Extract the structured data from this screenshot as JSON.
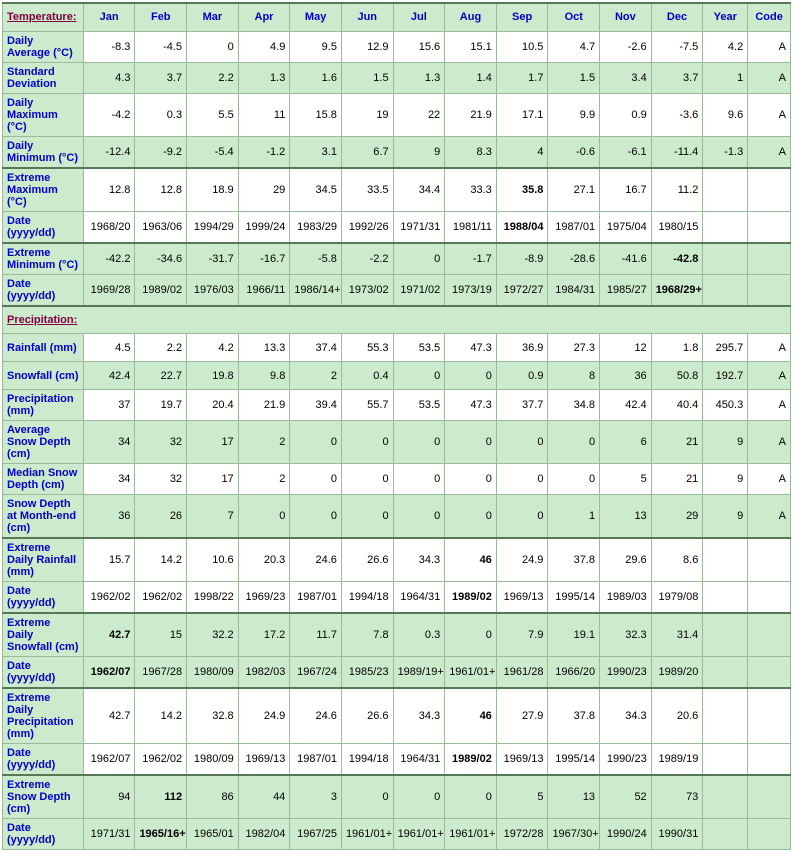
{
  "headers": [
    "Jan",
    "Feb",
    "Mar",
    "Apr",
    "May",
    "Jun",
    "Jul",
    "Aug",
    "Sep",
    "Oct",
    "Nov",
    "Dec",
    "Year",
    "Code"
  ],
  "sections": [
    {
      "title": "Temperature:",
      "rows": [
        {
          "label": "Daily Average (°C)",
          "zebra": "even",
          "vals": [
            "-8.3",
            "-4.5",
            "0",
            "4.9",
            "9.5",
            "12.9",
            "15.6",
            "15.1",
            "10.5",
            "4.7",
            "-2.6",
            "-7.5",
            "4.2",
            "A"
          ]
        },
        {
          "label": "Standard Deviation",
          "zebra": "odd",
          "vals": [
            "4.3",
            "3.7",
            "2.2",
            "1.3",
            "1.6",
            "1.5",
            "1.3",
            "1.4",
            "1.7",
            "1.5",
            "3.4",
            "3.7",
            "1",
            "A"
          ]
        },
        {
          "label": "Daily Maximum (°C)",
          "zebra": "even",
          "vals": [
            "-4.2",
            "0.3",
            "5.5",
            "11",
            "15.8",
            "19",
            "22",
            "21.9",
            "17.1",
            "9.9",
            "0.9",
            "-3.6",
            "9.6",
            "A"
          ]
        },
        {
          "label": "Daily Minimum (°C)",
          "zebra": "odd",
          "vals": [
            "-12.4",
            "-9.2",
            "-5.4",
            "-1.2",
            "3.1",
            "6.7",
            "9",
            "8.3",
            "4",
            "-0.6",
            "-6.1",
            "-11.4",
            "-1.3",
            "A"
          ]
        },
        {
          "label": "Extreme Maximum (°C)",
          "zebra": "even",
          "thick": true,
          "vals": [
            "12.8",
            "12.8",
            "18.9",
            "29",
            "34.5",
            "33.5",
            "34.4",
            "33.3",
            "35.8",
            "27.1",
            "16.7",
            "11.2",
            "",
            ""
          ],
          "bold": [
            8
          ]
        },
        {
          "label": "Date (yyyy/dd)",
          "zebra": "even",
          "vals": [
            "1968/20",
            "1963/06",
            "1994/29",
            "1999/24",
            "1983/29",
            "1992/26",
            "1971/31",
            "1981/11",
            "1988/04",
            "1987/01",
            "1975/04",
            "1980/15",
            "",
            ""
          ],
          "bold": [
            8
          ]
        },
        {
          "label": "Extreme Minimum (°C)",
          "zebra": "odd",
          "thick": true,
          "vals": [
            "-42.2",
            "-34.6",
            "-31.7",
            "-16.7",
            "-5.8",
            "-2.2",
            "0",
            "-1.7",
            "-8.9",
            "-28.6",
            "-41.6",
            "-42.8",
            "",
            ""
          ],
          "bold": [
            11
          ]
        },
        {
          "label": "Date (yyyy/dd)",
          "zebra": "odd",
          "vals": [
            "1969/28",
            "1989/02",
            "1976/03",
            "1966/11",
            "1986/14+",
            "1973/02",
            "1971/02",
            "1973/19",
            "1972/27",
            "1984/31",
            "1985/27",
            "1968/29+",
            "",
            ""
          ],
          "bold": [
            11
          ]
        }
      ]
    },
    {
      "title": "Precipitation:",
      "rows": [
        {
          "label": "Rainfall (mm)",
          "zebra": "even",
          "vals": [
            "4.5",
            "2.2",
            "4.2",
            "13.3",
            "37.4",
            "55.3",
            "53.5",
            "47.3",
            "36.9",
            "27.3",
            "12",
            "1.8",
            "295.7",
            "A"
          ]
        },
        {
          "label": "Snowfall (cm)",
          "zebra": "odd",
          "vals": [
            "42.4",
            "22.7",
            "19.8",
            "9.8",
            "2",
            "0.4",
            "0",
            "0",
            "0.9",
            "8",
            "36",
            "50.8",
            "192.7",
            "A"
          ]
        },
        {
          "label": "Precipitation (mm)",
          "zebra": "even",
          "vals": [
            "37",
            "19.7",
            "20.4",
            "21.9",
            "39.4",
            "55.7",
            "53.5",
            "47.3",
            "37.7",
            "34.8",
            "42.4",
            "40.4",
            "450.3",
            "A"
          ]
        },
        {
          "label": "Average Snow Depth (cm)",
          "zebra": "odd",
          "vals": [
            "34",
            "32",
            "17",
            "2",
            "0",
            "0",
            "0",
            "0",
            "0",
            "0",
            "6",
            "21",
            "9",
            "A"
          ]
        },
        {
          "label": "Median Snow Depth (cm)",
          "zebra": "even",
          "vals": [
            "34",
            "32",
            "17",
            "2",
            "0",
            "0",
            "0",
            "0",
            "0",
            "0",
            "5",
            "21",
            "9",
            "A"
          ]
        },
        {
          "label": "Snow Depth at Month-end (cm)",
          "zebra": "odd",
          "vals": [
            "36",
            "26",
            "7",
            "0",
            "0",
            "0",
            "0",
            "0",
            "0",
            "1",
            "13",
            "29",
            "9",
            "A"
          ]
        },
        {
          "label": "Extreme Daily Rainfall (mm)",
          "zebra": "even",
          "thick": true,
          "vals": [
            "15.7",
            "14.2",
            "10.6",
            "20.3",
            "24.6",
            "26.6",
            "34.3",
            "46",
            "24.9",
            "37.8",
            "29.6",
            "8.6",
            "",
            ""
          ],
          "bold": [
            7
          ]
        },
        {
          "label": "Date (yyyy/dd)",
          "zebra": "even",
          "vals": [
            "1962/02",
            "1962/02",
            "1998/22",
            "1969/23",
            "1987/01",
            "1994/18",
            "1964/31",
            "1989/02",
            "1969/13",
            "1995/14",
            "1989/03",
            "1979/08",
            "",
            ""
          ],
          "bold": [
            7
          ]
        },
        {
          "label": "Extreme Daily Snowfall (cm)",
          "zebra": "odd",
          "thick": true,
          "vals": [
            "42.7",
            "15",
            "32.2",
            "17.2",
            "11.7",
            "7.8",
            "0.3",
            "0",
            "7.9",
            "19.1",
            "32.3",
            "31.4",
            "",
            ""
          ],
          "bold": [
            0
          ]
        },
        {
          "label": "Date (yyyy/dd)",
          "zebra": "odd",
          "vals": [
            "1962/07",
            "1967/28",
            "1980/09",
            "1982/03",
            "1967/24",
            "1985/23",
            "1989/19+",
            "1961/01+",
            "1961/28",
            "1966/20",
            "1990/23",
            "1989/20",
            "",
            ""
          ],
          "bold": [
            0
          ]
        },
        {
          "label": "Extreme Daily Precipitation (mm)",
          "zebra": "even",
          "thick": true,
          "vals": [
            "42.7",
            "14.2",
            "32.8",
            "24.9",
            "24.6",
            "26.6",
            "34.3",
            "46",
            "27.9",
            "37.8",
            "34.3",
            "20.6",
            "",
            ""
          ],
          "bold": [
            7
          ]
        },
        {
          "label": "Date (yyyy/dd)",
          "zebra": "even",
          "vals": [
            "1962/07",
            "1962/02",
            "1980/09",
            "1969/13",
            "1987/01",
            "1994/18",
            "1964/31",
            "1989/02",
            "1969/13",
            "1995/14",
            "1990/23",
            "1989/19",
            "",
            ""
          ],
          "bold": [
            7
          ]
        },
        {
          "label": "Extreme Snow Depth (cm)",
          "zebra": "odd",
          "thick": true,
          "vals": [
            "94",
            "112",
            "86",
            "44",
            "3",
            "0",
            "0",
            "0",
            "5",
            "13",
            "52",
            "73",
            "",
            ""
          ],
          "bold": [
            1
          ]
        },
        {
          "label": "Date (yyyy/dd)",
          "zebra": "odd",
          "vals": [
            "1971/31",
            "1965/16+",
            "1965/01",
            "1982/04",
            "1967/25",
            "1961/01+",
            "1961/01+",
            "1961/01+",
            "1972/28",
            "1967/30+",
            "1990/24",
            "1990/31",
            "",
            ""
          ],
          "bold": [
            1
          ]
        }
      ]
    }
  ]
}
